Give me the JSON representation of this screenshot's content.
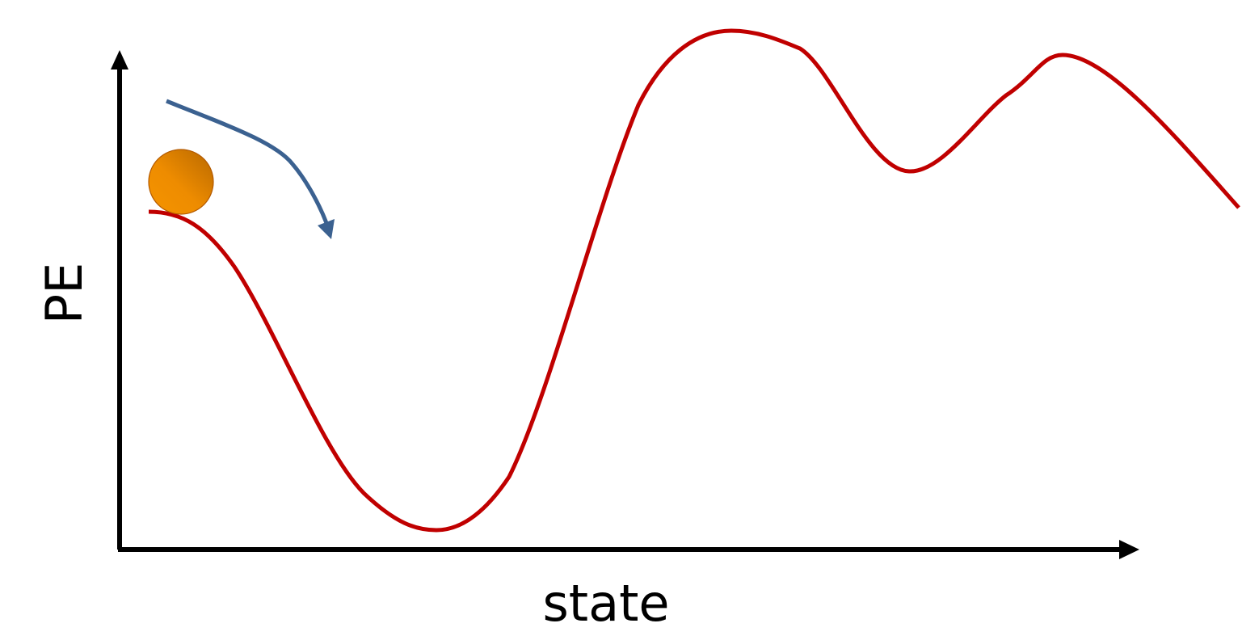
{
  "diagram": {
    "x_axis_label": "state",
    "y_axis_label": "PE",
    "colors": {
      "axes": "#000000",
      "curve": "#c00000",
      "arrow": "#3b6190",
      "ball_light": "#f59400",
      "ball_dark": "#b86800",
      "background": "#ffffff"
    },
    "elements": {
      "curve": "potential-energy-curve",
      "ball": "ball",
      "arrow": "rolling-direction-arrow"
    }
  }
}
